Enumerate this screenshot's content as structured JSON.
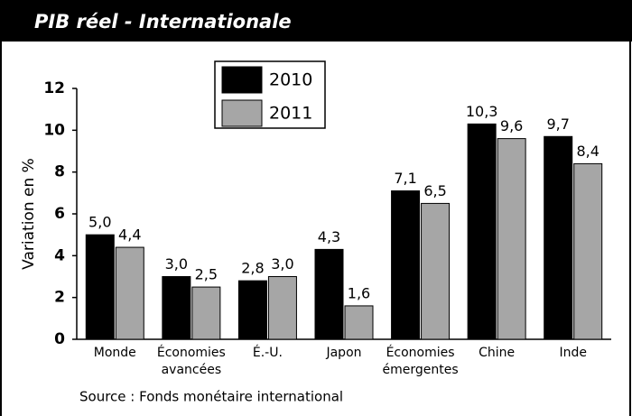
{
  "chart_data": {
    "type": "bar",
    "title": "PIB réel - Internationale",
    "y_label": "Variation en %",
    "source": "Source : Fonds monétaire international",
    "categories": [
      [
        "Monde"
      ],
      [
        "Économies",
        "avancées"
      ],
      [
        "É.-U."
      ],
      [
        "Japon"
      ],
      [
        "Économies",
        "émergentes"
      ],
      [
        "Chine"
      ],
      [
        "Inde"
      ]
    ],
    "series": [
      {
        "name": "2010",
        "color": "#000000",
        "values": [
          5.0,
          3.0,
          2.8,
          4.3,
          7.1,
          10.3,
          9.7
        ],
        "value_labels": [
          "5,0",
          "3,0",
          "2,8",
          "4,3",
          "7,1",
          "10,3",
          "9,7"
        ]
      },
      {
        "name": "2011",
        "color": "#a6a6a6",
        "values": [
          4.4,
          2.5,
          3.0,
          1.6,
          6.5,
          9.6,
          8.4
        ],
        "value_labels": [
          "4,4",
          "2,5",
          "3,0",
          "1,6",
          "6,5",
          "9,6",
          "8,4"
        ]
      }
    ],
    "ylim": [
      0,
      12
    ],
    "yticks": [
      0,
      2,
      4,
      6,
      8,
      10,
      12
    ],
    "grid": false
  }
}
